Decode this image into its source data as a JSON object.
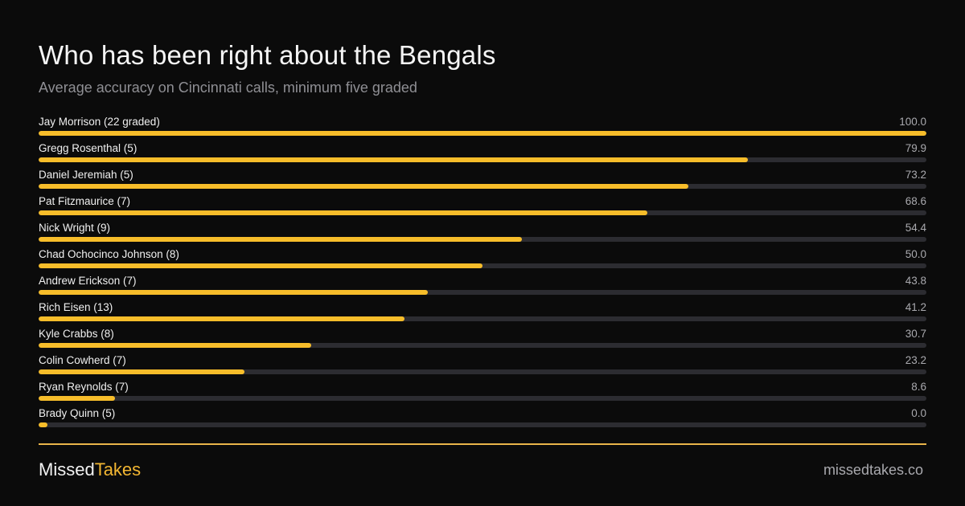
{
  "header": {
    "title": "Who has been right about the Bengals",
    "subtitle": "Average accuracy on Cincinnati calls, minimum five graded"
  },
  "chart_data": {
    "type": "bar",
    "orientation": "horizontal",
    "title": "Who has been right about the Bengals",
    "subtitle": "Average accuracy on Cincinnati calls, minimum five graded",
    "xlim": [
      0,
      100
    ],
    "grid": false,
    "categories": [
      "Jay Morrison (22 graded)",
      "Gregg Rosenthal (5)",
      "Daniel Jeremiah (5)",
      "Pat Fitzmaurice (7)",
      "Nick Wright (9)",
      "Chad Ochocinco Johnson (8)",
      "Andrew Erickson (7)",
      "Rich Eisen (13)",
      "Kyle Crabbs (8)",
      "Colin Cowherd (7)",
      "Ryan Reynolds (7)",
      "Brady Quinn (5)"
    ],
    "values": [
      100.0,
      79.9,
      73.2,
      68.6,
      54.4,
      50.0,
      43.8,
      41.2,
      30.7,
      23.2,
      8.6,
      0.0
    ],
    "value_labels": [
      "100.0",
      "79.9",
      "73.2",
      "68.6",
      "54.4",
      "50.0",
      "43.8",
      "41.2",
      "30.7",
      "23.2",
      "8.6",
      "0.0"
    ],
    "colors": {
      "bar": "#f7bd2a",
      "track": "#2c2c31"
    }
  },
  "footer": {
    "brand_part1": "Missed",
    "brand_part2": "Takes",
    "site": "missedtakes.co"
  },
  "colors": {
    "background": "#0b0b0b",
    "accent": "#f2b632",
    "divider": "#e9b54a"
  }
}
